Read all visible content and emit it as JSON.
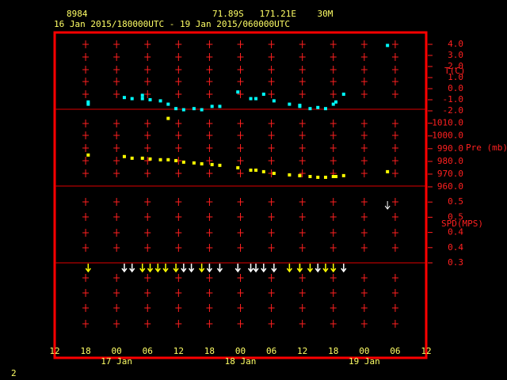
{
  "header": {
    "station": "8984",
    "location": "71.89S   171.21E    30M",
    "period": "16 Jan 2015/180000UTC - 19 Jan 2015/060000UTC",
    "footer": "2"
  },
  "x_axis": {
    "xlim": [
      0,
      72
    ],
    "xticks": [
      {
        "value": 0,
        "label": "12"
      },
      {
        "value": 6,
        "label": "18"
      },
      {
        "value": 12,
        "label": "00"
      },
      {
        "value": 18,
        "label": "06"
      },
      {
        "value": 24,
        "label": "12"
      },
      {
        "value": 30,
        "label": "18"
      },
      {
        "value": 36,
        "label": "00"
      },
      {
        "value": 42,
        "label": "06"
      },
      {
        "value": 48,
        "label": "12"
      },
      {
        "value": 54,
        "label": "18"
      },
      {
        "value": 60,
        "label": "00"
      },
      {
        "value": 66,
        "label": "06"
      },
      {
        "value": 72,
        "label": "12"
      }
    ],
    "days": [
      {
        "value": 12,
        "label": "17 Jan"
      },
      {
        "value": 36,
        "label": "18 Jan"
      },
      {
        "value": 60,
        "label": "19 Jan"
      }
    ]
  },
  "chart_data": [
    {
      "type": "scatter",
      "ylabel": "T(C)",
      "color": "#00ffff",
      "ylim": [
        -2,
        5
      ],
      "yticks": [
        {
          "value": 4,
          "label": "4.0"
        },
        {
          "value": 3,
          "label": "3.0"
        },
        {
          "value": 2,
          "label": "2.0"
        },
        {
          "value": 1,
          "label": "1.0"
        },
        {
          "value": 0,
          "label": "0.0"
        },
        {
          "value": -1,
          "label": "-1.0"
        },
        {
          "value": -2,
          "label": "-2.0"
        }
      ],
      "x": [
        6.5,
        6.5,
        13.5,
        15,
        17,
        17,
        18.5,
        20.5,
        22,
        23.5,
        25,
        27,
        28.5,
        30.5,
        32,
        35.5,
        38,
        39,
        40.5,
        42.5,
        45.5,
        47.5,
        47.5,
        49.5,
        51,
        52.5,
        54,
        54.5,
        56,
        64.5
      ],
      "values": [
        -1.4,
        -1.2,
        -0.8,
        -0.9,
        -0.6,
        -0.9,
        -1.0,
        -1.1,
        -1.4,
        -1.8,
        -1.9,
        -1.8,
        -1.9,
        -1.6,
        -1.6,
        -0.3,
        -0.9,
        -0.9,
        -0.5,
        -1.1,
        -1.4,
        -1.5,
        -1.6,
        -1.8,
        -1.7,
        -1.8,
        -1.4,
        -1.2,
        -0.5,
        3.9
      ]
    },
    {
      "type": "scatter",
      "ylabel": "Pre (mb)",
      "color": "#ffff00",
      "ylim": [
        960,
        1021
      ],
      "yticks": [
        {
          "value": 1010,
          "label": "1010.0"
        },
        {
          "value": 1000,
          "label": "1000.0"
        },
        {
          "value": 990,
          "label": "990.0"
        },
        {
          "value": 980,
          "label": "980.0"
        },
        {
          "value": 970,
          "label": "970.0"
        },
        {
          "value": 960,
          "label": "960.0"
        }
      ],
      "x": [
        6.5,
        13.5,
        15,
        17,
        18.5,
        20.5,
        22,
        22,
        23.5,
        25,
        27,
        28.5,
        30.5,
        32,
        35.5,
        38,
        39,
        40.5,
        42.5,
        45.5,
        47.5,
        47.5,
        49.5,
        51,
        52.5,
        54,
        54.5,
        56,
        64.5
      ],
      "values": [
        985,
        983.8,
        982.5,
        982.5,
        981.9,
        981.3,
        981.3,
        1013.8,
        980.6,
        979.4,
        978.8,
        978.1,
        977.5,
        976.9,
        975,
        973.1,
        973.1,
        971.9,
        970.6,
        969.4,
        968.8,
        968.8,
        968.1,
        967.5,
        967.5,
        968.1,
        968.1,
        968.8,
        971.9
      ]
    },
    {
      "type": "arrow",
      "ylabel": "SPD(MPS)",
      "color": "#ffffff",
      "ylim": [
        0.3,
        0.55
      ],
      "yticks": [
        {
          "value": 0.5,
          "label": "0.5"
        },
        {
          "value": 0.45,
          "label": "0.5"
        },
        {
          "value": 0.4,
          "label": "0.4"
        },
        {
          "value": 0.35,
          "label": "0.4"
        },
        {
          "value": 0.3,
          "label": "0.3"
        }
      ],
      "x": [
        64.5
      ],
      "values": [
        0.49
      ]
    },
    {
      "type": "direction",
      "x": [
        6.5,
        13.5,
        15,
        17,
        18.5,
        20,
        21.5,
        23.5,
        25,
        26.5,
        28.5,
        30,
        32,
        35.5,
        38,
        39,
        40.5,
        42.5,
        45.5,
        47.5,
        47.5,
        49.5,
        51,
        52.5,
        54,
        56
      ],
      "colors": [
        "#ffff00",
        "#ffffff",
        "#ffffff",
        "#ffff00",
        "#ffff00",
        "#ffff00",
        "#ffff00",
        "#ffff00",
        "#ffffff",
        "#ffffff",
        "#ffff00",
        "#ffffff",
        "#ffffff",
        "#ffffff",
        "#ffffff",
        "#ffffff",
        "#ffffff",
        "#ffffff",
        "#ffff00",
        "#ffff00",
        "#ffff00",
        "#ffff00",
        "#ffffff",
        "#ffff00",
        "#ffff00",
        "#ffffff"
      ]
    }
  ]
}
